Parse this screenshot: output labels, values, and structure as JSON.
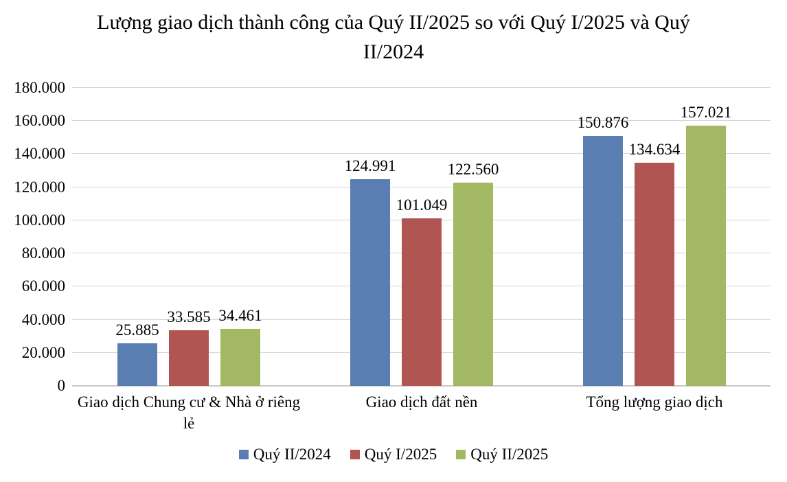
{
  "chart_data": {
    "type": "bar",
    "title": "Lượng giao dịch thành công của Quý II/2025 so với Quý I/2025 và Quý II/2024",
    "categories": [
      "Giao dịch Chung cư & Nhà ở riêng lẻ",
      "Giao dịch đất nền",
      "Tổng lượng giao dịch"
    ],
    "series": [
      {
        "name": "Quý II/2024",
        "color": "#5B7EB2",
        "values": [
          25885,
          124991,
          150876
        ],
        "labels": [
          "25.885",
          "124.991",
          "150.876"
        ]
      },
      {
        "name": "Quý I/2025",
        "color": "#B15552",
        "values": [
          33585,
          101049,
          134634
        ],
        "labels": [
          "33.585",
          "101.049",
          "134.634"
        ]
      },
      {
        "name": "Quý II/2025",
        "color": "#A2B863",
        "values": [
          34461,
          122560,
          157021
        ],
        "labels": [
          "34.461",
          "122.560",
          "157.021"
        ]
      }
    ],
    "ylim": [
      0,
      180000
    ],
    "ytick_step": 20000,
    "yticks": [
      {
        "value": 0,
        "label": "0"
      },
      {
        "value": 20000,
        "label": "20.000"
      },
      {
        "value": 40000,
        "label": "40.000"
      },
      {
        "value": 60000,
        "label": "60.000"
      },
      {
        "value": 80000,
        "label": "80.000"
      },
      {
        "value": 100000,
        "label": "100.000"
      },
      {
        "value": 120000,
        "label": "120.000"
      },
      {
        "value": 140000,
        "label": "140.000"
      },
      {
        "value": 160000,
        "label": "160.000"
      },
      {
        "value": 180000,
        "label": "180.000"
      }
    ],
    "grid": true,
    "legend_position": "bottom"
  }
}
